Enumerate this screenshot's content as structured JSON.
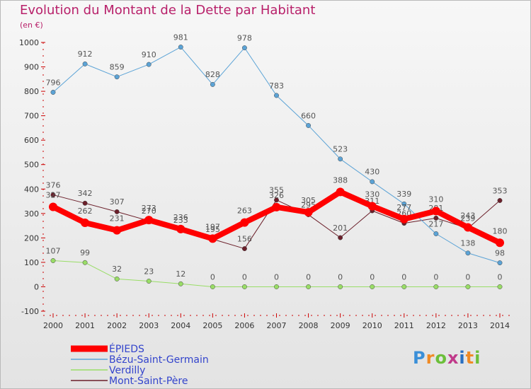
{
  "title": "Evolution du Montant de la Dette par Habitant",
  "unit": "(en €)",
  "logo": "Proxiti",
  "chart_data": {
    "type": "line",
    "x": [
      "2000",
      "2001",
      "2002",
      "2003",
      "2004",
      "2005",
      "2006",
      "2007",
      "2008",
      "2009",
      "2010",
      "2011",
      "2012",
      "2013",
      "2014"
    ],
    "ylim": [
      -100,
      1000
    ],
    "yticks": [
      -100,
      0,
      100,
      200,
      300,
      400,
      500,
      600,
      700,
      800,
      900,
      1000
    ],
    "grid": false,
    "legend": "bottom-left",
    "series": [
      {
        "name": "Mont-Saint-Père",
        "color": "#6b1f2a",
        "width": 1,
        "radius": 3.2,
        "values": [
          376,
          342,
          307,
          270,
          233,
          195,
          156,
          355,
          295,
          201,
          311,
          260,
          281,
          239,
          353
        ]
      },
      {
        "name": "Verdilly",
        "color": "#99dd66",
        "width": 1,
        "radius": 3.2,
        "values": [
          107,
          99,
          32,
          23,
          12,
          0,
          0,
          0,
          0,
          0,
          0,
          0,
          0,
          0,
          0
        ]
      },
      {
        "name": "Bézu-Saint-Germain",
        "color": "#5ba3d6",
        "width": 1,
        "radius": 3.2,
        "values": [
          796,
          912,
          859,
          910,
          981,
          828,
          978,
          783,
          660,
          523,
          430,
          339,
          217,
          138,
          98
        ]
      },
      {
        "name": "ÉPIEDS",
        "color": "#ff0000",
        "width": 8,
        "radius": 6,
        "values": [
          327,
          262,
          231,
          273,
          236,
          197,
          263,
          326,
          305,
          388,
          330,
          277,
          310,
          243,
          180
        ]
      }
    ]
  }
}
